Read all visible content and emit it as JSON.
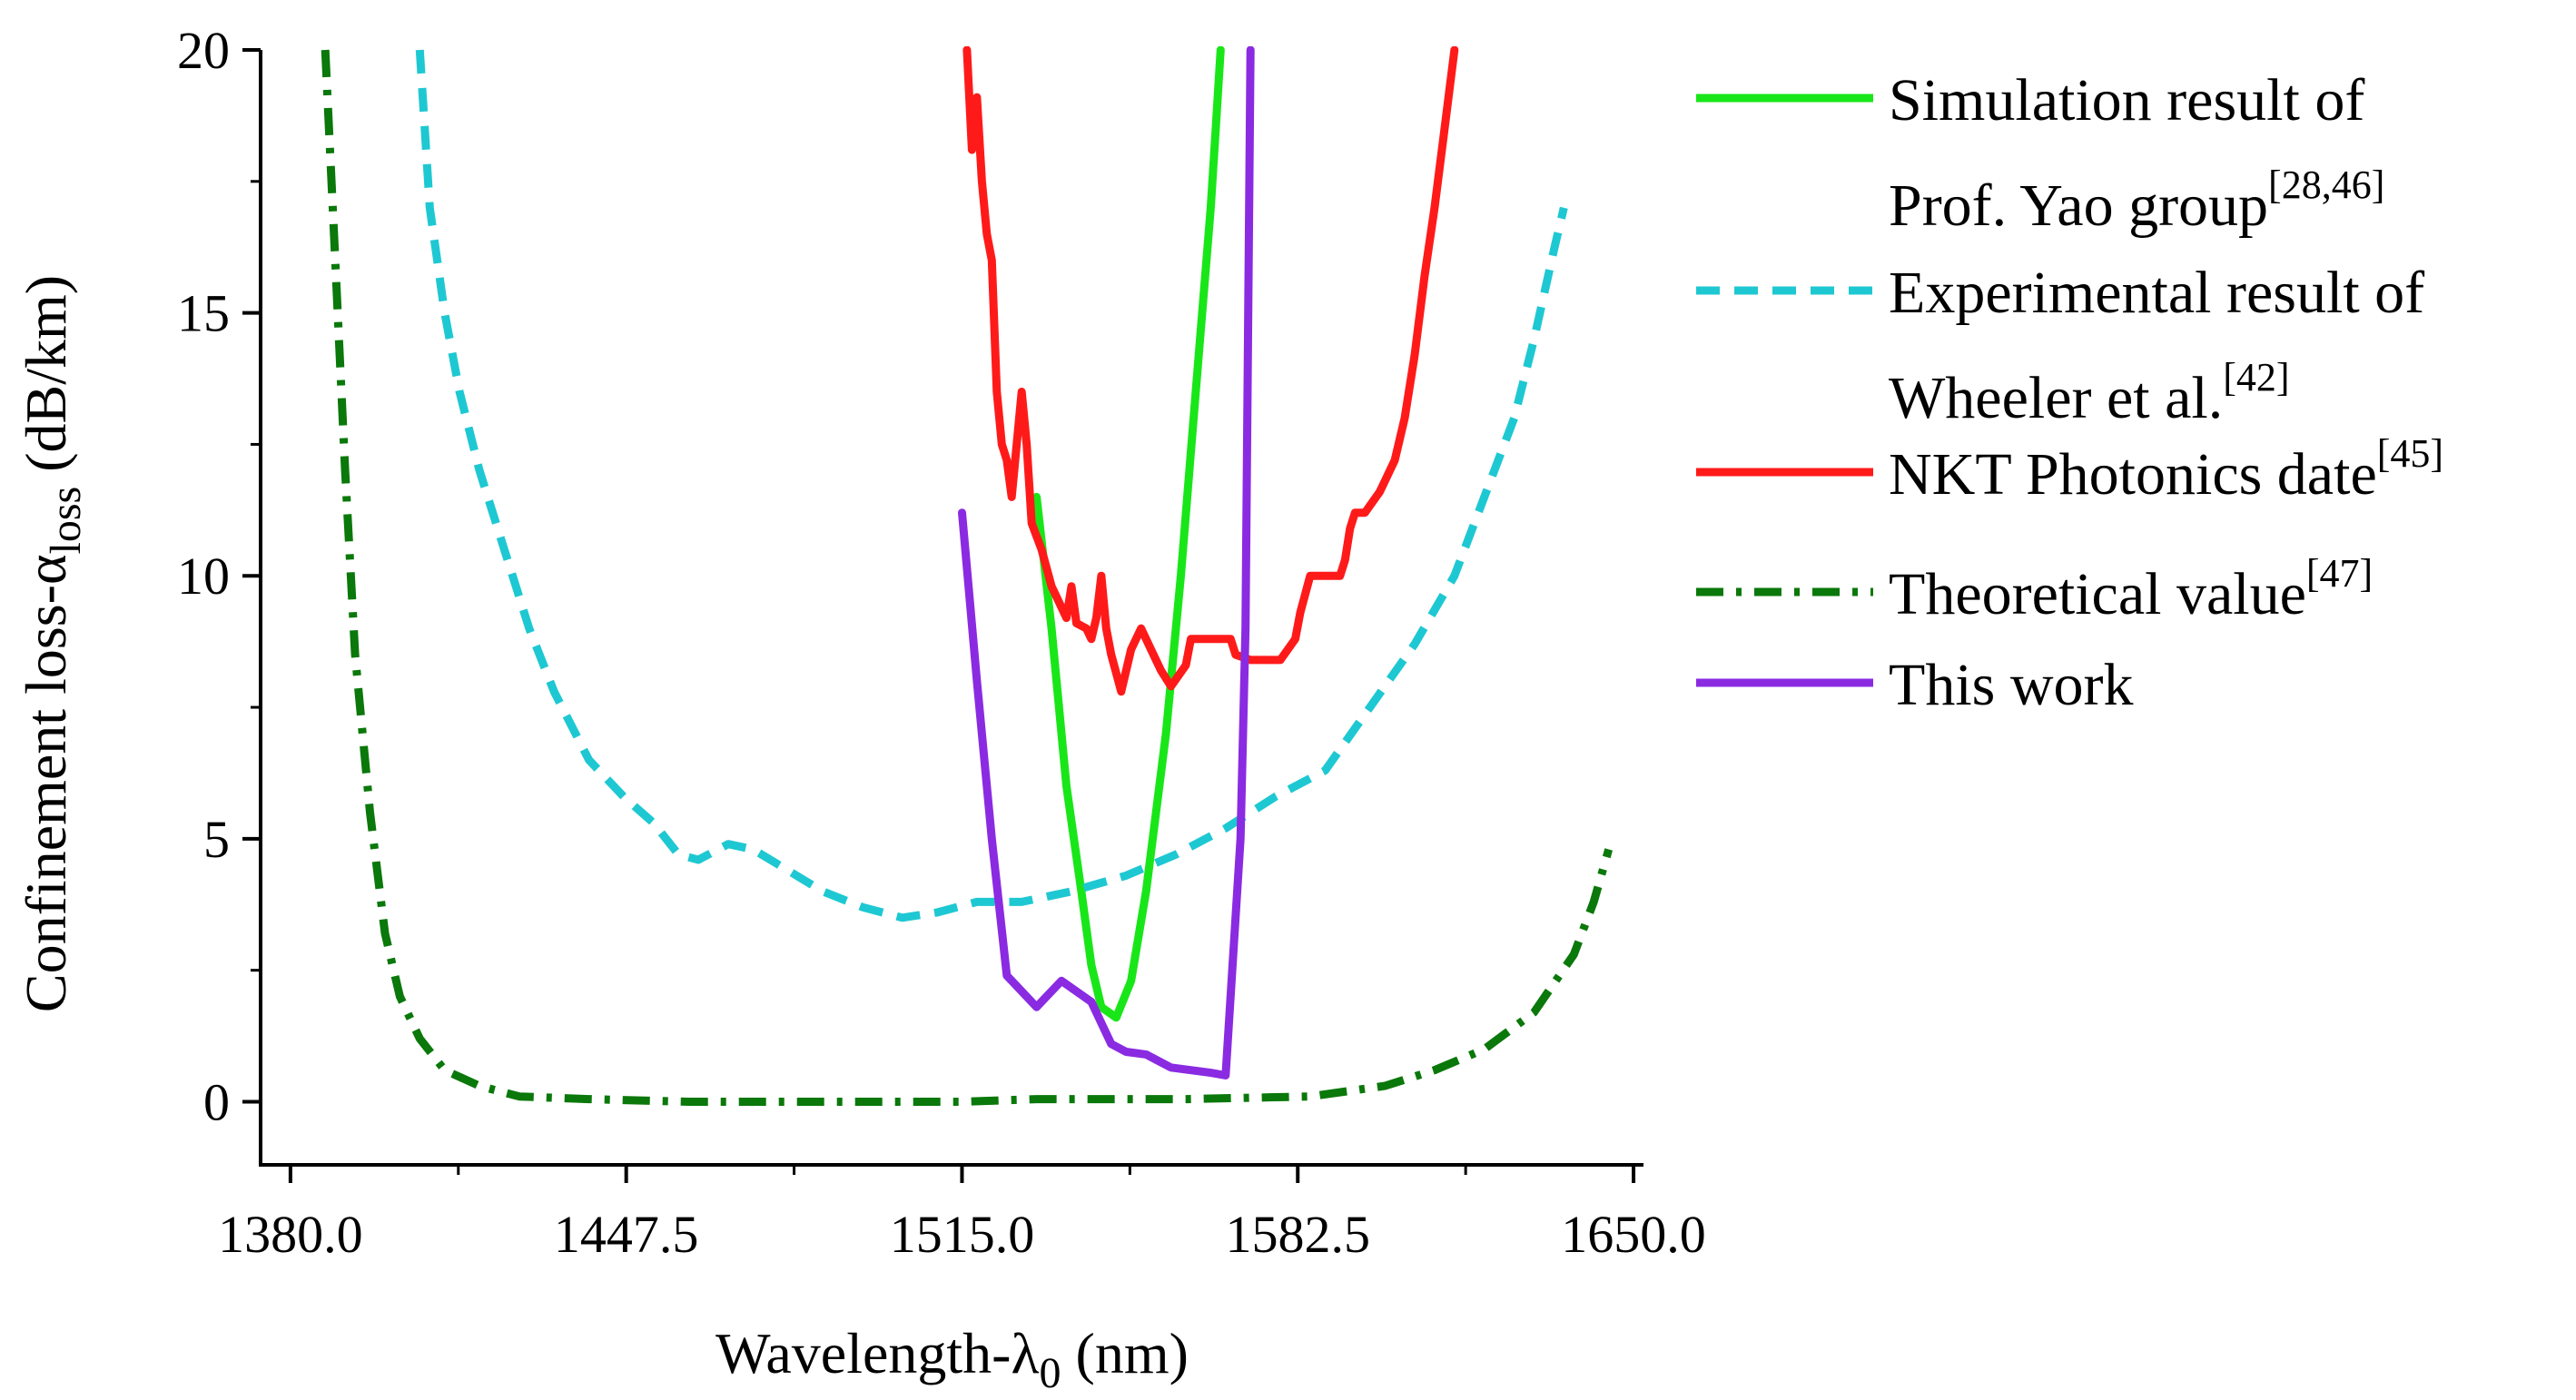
{
  "chart_data": {
    "type": "line",
    "xlabel": "Wavelength-λ0 (nm)",
    "xlabel_main": "Wavelength-λ",
    "xlabel_sub": "0",
    "xlabel_tail": " (nm)",
    "ylabel": "Confinement loss-αloss (dB/km)",
    "ylabel_main": "Confinement loss-α",
    "ylabel_sub": "loss",
    "ylabel_tail": " (dB/km)",
    "xlim": [
      1374,
      1652
    ],
    "ylim": [
      -1.2,
      20
    ],
    "x_ticks": [
      1380.0,
      1447.5,
      1515.0,
      1582.5,
      1650.0
    ],
    "x_tick_labels": [
      "1380.0",
      "1447.5",
      "1515.0",
      "1582.5",
      "1650.0"
    ],
    "x_minor_ticks": [
      1413.75,
      1481.25,
      1548.75,
      1616.25
    ],
    "y_ticks": [
      0,
      5,
      10,
      15,
      20
    ],
    "y_tick_labels": [
      "0",
      "5",
      "10",
      "15",
      "20"
    ],
    "legend_position": "right",
    "series": [
      {
        "name": "Simulation result of Prof. Yao group[28,46]",
        "legend_lines": [
          "Simulation result of",
          "Prof. Yao group"
        ],
        "legend_sup": "[28,46]",
        "color": "#19e619",
        "dash": "solid",
        "points": [
          [
            1530,
            11.5
          ],
          [
            1533,
            9
          ],
          [
            1536,
            6
          ],
          [
            1539,
            4
          ],
          [
            1541,
            2.6
          ],
          [
            1543,
            1.8
          ],
          [
            1546,
            1.6
          ],
          [
            1549,
            2.3
          ],
          [
            1552,
            4
          ],
          [
            1556,
            7
          ],
          [
            1559,
            10
          ],
          [
            1562,
            13.5
          ],
          [
            1565,
            17
          ],
          [
            1566,
            18.5
          ],
          [
            1567,
            20
          ]
        ]
      },
      {
        "name": "Experimental result of Wheeler et al.[42]",
        "legend_lines": [
          "Experimental result of",
          "Wheeler et al."
        ],
        "legend_sup": "[42]",
        "color": "#1ec8d2",
        "dash": "dashed",
        "points": [
          [
            1406,
            20
          ],
          [
            1408,
            17
          ],
          [
            1411,
            15
          ],
          [
            1414,
            13.5
          ],
          [
            1418,
            12
          ],
          [
            1423,
            10.5
          ],
          [
            1428,
            9
          ],
          [
            1433,
            7.8
          ],
          [
            1440,
            6.5
          ],
          [
            1447,
            5.8
          ],
          [
            1453,
            5.3
          ],
          [
            1458,
            4.7
          ],
          [
            1462,
            4.6
          ],
          [
            1468,
            4.9
          ],
          [
            1473,
            4.8
          ],
          [
            1480,
            4.4
          ],
          [
            1487,
            4.0
          ],
          [
            1495,
            3.7
          ],
          [
            1503,
            3.5
          ],
          [
            1510,
            3.6
          ],
          [
            1518,
            3.8
          ],
          [
            1527,
            3.8
          ],
          [
            1537,
            4.0
          ],
          [
            1548,
            4.3
          ],
          [
            1558,
            4.7
          ],
          [
            1568,
            5.2
          ],
          [
            1578,
            5.8
          ],
          [
            1588,
            6.3
          ],
          [
            1597,
            7.5
          ],
          [
            1606,
            8.7
          ],
          [
            1614,
            10.0
          ],
          [
            1620,
            11.5
          ],
          [
            1626,
            13.0
          ],
          [
            1630,
            14.5
          ],
          [
            1634,
            16.2
          ],
          [
            1636,
            17.0
          ]
        ]
      },
      {
        "name": "NKT Photonics date[45]",
        "legend_lines": [
          "NKT Photonics date"
        ],
        "legend_sup": "[45]",
        "color": "#ff1a1a",
        "dash": "solid",
        "points": [
          [
            1516,
            20
          ],
          [
            1517,
            18.1
          ],
          [
            1518,
            19.1
          ],
          [
            1519,
            17.5
          ],
          [
            1520,
            16.5
          ],
          [
            1521,
            16
          ],
          [
            1522,
            13.5
          ],
          [
            1523,
            12.5
          ],
          [
            1524,
            12.2
          ],
          [
            1525,
            11.5
          ],
          [
            1527,
            13.5
          ],
          [
            1528,
            12.5
          ],
          [
            1529,
            11
          ],
          [
            1531,
            10.5
          ],
          [
            1533,
            9.8
          ],
          [
            1536,
            9.2
          ],
          [
            1537,
            9.8
          ],
          [
            1538,
            9.1
          ],
          [
            1540,
            9.0
          ],
          [
            1541,
            8.8
          ],
          [
            1542,
            9.2
          ],
          [
            1543,
            10.0
          ],
          [
            1544,
            9.0
          ],
          [
            1545,
            8.5
          ],
          [
            1547,
            7.8
          ],
          [
            1549,
            8.6
          ],
          [
            1551,
            9.0
          ],
          [
            1553,
            8.6
          ],
          [
            1555,
            8.2
          ],
          [
            1557,
            7.9
          ],
          [
            1560,
            8.3
          ],
          [
            1561,
            8.8
          ],
          [
            1569,
            8.8
          ],
          [
            1570,
            8.5
          ],
          [
            1573,
            8.4
          ],
          [
            1579,
            8.4
          ],
          [
            1582,
            8.8
          ],
          [
            1583,
            9.3
          ],
          [
            1585,
            10.0
          ],
          [
            1591,
            10.0
          ],
          [
            1592,
            10.3
          ],
          [
            1593,
            10.9
          ],
          [
            1594,
            11.2
          ],
          [
            1596,
            11.2
          ],
          [
            1599,
            11.6
          ],
          [
            1602,
            12.2
          ],
          [
            1604,
            13.0
          ],
          [
            1606,
            14.2
          ],
          [
            1608,
            15.7
          ],
          [
            1610,
            17.0
          ],
          [
            1612,
            18.5
          ],
          [
            1614,
            20
          ]
        ]
      },
      {
        "name": "Theoretical value[47]",
        "legend_lines": [
          "Theoretical value"
        ],
        "legend_sup": "[47]",
        "color": "#0a780a",
        "dash": "dashdot",
        "points": [
          [
            1387,
            20
          ],
          [
            1389,
            16
          ],
          [
            1391,
            12
          ],
          [
            1393,
            8.5
          ],
          [
            1396,
            5.5
          ],
          [
            1399,
            3.2
          ],
          [
            1402,
            2.0
          ],
          [
            1406,
            1.2
          ],
          [
            1411,
            0.6
          ],
          [
            1418,
            0.3
          ],
          [
            1426,
            0.1
          ],
          [
            1440,
            0.05
          ],
          [
            1460,
            0.0
          ],
          [
            1490,
            0.0
          ],
          [
            1515,
            0.0
          ],
          [
            1530,
            0.05
          ],
          [
            1560,
            0.05
          ],
          [
            1585,
            0.1
          ],
          [
            1600,
            0.3
          ],
          [
            1610,
            0.6
          ],
          [
            1620,
            1.0
          ],
          [
            1630,
            1.7
          ],
          [
            1638,
            2.8
          ],
          [
            1642,
            3.8
          ],
          [
            1645,
            4.8
          ]
        ]
      },
      {
        "name": "This work",
        "legend_lines": [
          "This work"
        ],
        "legend_sup": "",
        "color": "#8a2be2",
        "dash": "solid",
        "points": [
          [
            1515,
            11.2
          ],
          [
            1518,
            8
          ],
          [
            1521,
            5
          ],
          [
            1524,
            2.4
          ],
          [
            1530,
            1.8
          ],
          [
            1535,
            2.3
          ],
          [
            1541,
            1.9
          ],
          [
            1545,
            1.1
          ],
          [
            1548,
            0.95
          ],
          [
            1552,
            0.9
          ],
          [
            1557,
            0.65
          ],
          [
            1565,
            0.55
          ],
          [
            1568,
            0.5
          ],
          [
            1571,
            5
          ],
          [
            1572,
            9
          ],
          [
            1573,
            20
          ]
        ]
      }
    ]
  }
}
